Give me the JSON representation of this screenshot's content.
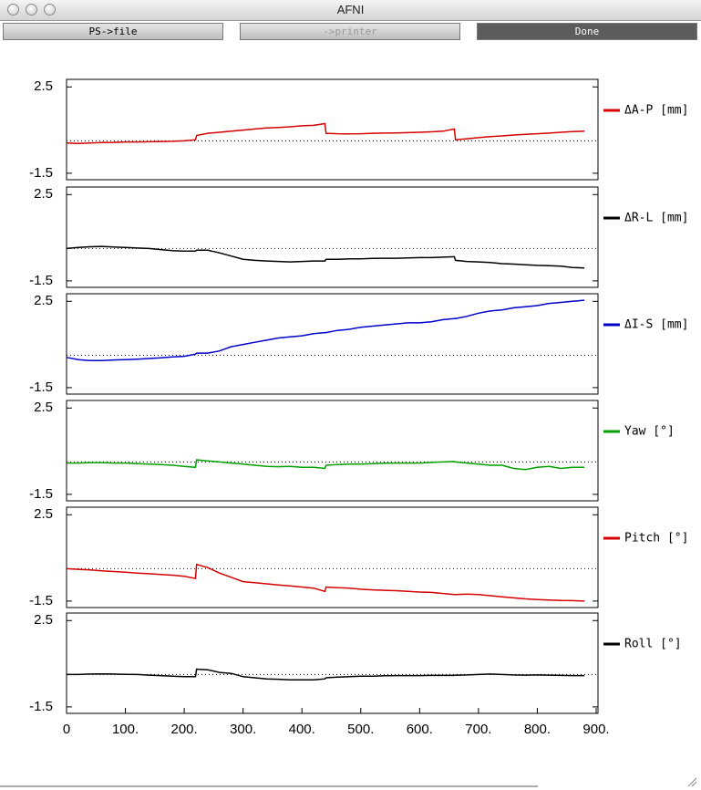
{
  "window": {
    "title": "AFNI",
    "buttons": [
      "PS->file",
      "->printer",
      "Done"
    ]
  },
  "chart_data": [
    {
      "type": "line",
      "xlim": [
        0,
        900
      ],
      "ylim": [
        -1.8,
        2.85
      ],
      "yticks": [
        2.5,
        -1.5
      ],
      "x": [
        0,
        20,
        40,
        60,
        80,
        100,
        120,
        140,
        160,
        180,
        200,
        219,
        221,
        240,
        260,
        280,
        300,
        320,
        340,
        360,
        380,
        400,
        420,
        439,
        441,
        460,
        480,
        500,
        520,
        540,
        560,
        580,
        600,
        620,
        640,
        659,
        661,
        680,
        700,
        720,
        740,
        760,
        780,
        800,
        820,
        840,
        860,
        880
      ],
      "series": [
        {
          "name": "ΔA-P [mm]",
          "color": "#d40000",
          "values": [
            -0.1,
            -0.12,
            -0.1,
            -0.08,
            -0.07,
            -0.05,
            -0.05,
            -0.04,
            -0.03,
            -0.02,
            0.0,
            0.05,
            0.25,
            0.35,
            0.4,
            0.45,
            0.5,
            0.55,
            0.6,
            0.62,
            0.65,
            0.7,
            0.72,
            0.8,
            0.35,
            0.33,
            0.32,
            0.33,
            0.35,
            0.36,
            0.37,
            0.38,
            0.4,
            0.42,
            0.45,
            0.55,
            0.05,
            0.1,
            0.15,
            0.2,
            0.23,
            0.27,
            0.3,
            0.33,
            0.36,
            0.4,
            0.43,
            0.45
          ]
        }
      ]
    },
    {
      "type": "line",
      "xlim": [
        0,
        900
      ],
      "ylim": [
        -1.8,
        2.85
      ],
      "yticks": [
        2.5,
        -1.5
      ],
      "x": [
        0,
        20,
        40,
        60,
        80,
        100,
        120,
        140,
        160,
        180,
        200,
        219,
        221,
        240,
        260,
        280,
        300,
        320,
        340,
        360,
        380,
        400,
        420,
        439,
        441,
        460,
        480,
        500,
        520,
        540,
        560,
        580,
        600,
        620,
        640,
        659,
        661,
        680,
        700,
        720,
        740,
        760,
        780,
        800,
        820,
        840,
        860,
        880
      ],
      "series": [
        {
          "name": "ΔR-L [mm]",
          "color": "#000000",
          "values": [
            0,
            0.05,
            0.08,
            0.1,
            0.07,
            0.05,
            0.02,
            0,
            -0.05,
            -0.1,
            -0.12,
            -0.12,
            -0.08,
            -0.08,
            -0.2,
            -0.35,
            -0.5,
            -0.55,
            -0.58,
            -0.6,
            -0.62,
            -0.6,
            -0.58,
            -0.58,
            -0.5,
            -0.5,
            -0.48,
            -0.48,
            -0.46,
            -0.45,
            -0.45,
            -0.44,
            -0.42,
            -0.42,
            -0.4,
            -0.38,
            -0.55,
            -0.6,
            -0.62,
            -0.65,
            -0.7,
            -0.72,
            -0.75,
            -0.78,
            -0.8,
            -0.82,
            -0.88,
            -0.9
          ]
        }
      ]
    },
    {
      "type": "line",
      "xlim": [
        0,
        900
      ],
      "ylim": [
        -1.8,
        2.85
      ],
      "yticks": [
        2.5,
        -1.5
      ],
      "x": [
        0,
        20,
        40,
        60,
        80,
        100,
        120,
        140,
        160,
        180,
        200,
        219,
        221,
        240,
        260,
        280,
        300,
        320,
        340,
        360,
        380,
        400,
        420,
        439,
        441,
        460,
        480,
        500,
        520,
        540,
        560,
        580,
        600,
        620,
        640,
        659,
        661,
        680,
        700,
        720,
        740,
        760,
        780,
        800,
        820,
        840,
        860,
        880
      ],
      "series": [
        {
          "name": "ΔI-S [mm]",
          "color": "#0000c8",
          "values": [
            -0.1,
            -0.2,
            -0.25,
            -0.25,
            -0.22,
            -0.2,
            -0.18,
            -0.15,
            -0.12,
            -0.08,
            -0.05,
            0.05,
            0.1,
            0.1,
            0.2,
            0.4,
            0.5,
            0.6,
            0.7,
            0.8,
            0.85,
            0.9,
            1.0,
            1.05,
            1.05,
            1.15,
            1.2,
            1.3,
            1.35,
            1.4,
            1.45,
            1.5,
            1.5,
            1.55,
            1.65,
            1.7,
            1.7,
            1.8,
            1.95,
            2.05,
            2.1,
            2.2,
            2.25,
            2.3,
            2.4,
            2.45,
            2.5,
            2.55
          ]
        }
      ]
    },
    {
      "type": "line",
      "xlim": [
        0,
        900
      ],
      "ylim": [
        -1.8,
        2.85
      ],
      "yticks": [
        2.5,
        -1.5
      ],
      "x": [
        0,
        20,
        40,
        60,
        80,
        100,
        120,
        140,
        160,
        180,
        200,
        219,
        221,
        240,
        260,
        280,
        300,
        320,
        340,
        360,
        380,
        400,
        420,
        439,
        441,
        460,
        480,
        500,
        520,
        540,
        560,
        580,
        600,
        620,
        640,
        659,
        661,
        680,
        700,
        720,
        740,
        760,
        780,
        800,
        820,
        840,
        860,
        880
      ],
      "series": [
        {
          "name": "Yaw [°]",
          "color": "#00a000",
          "values": [
            -0.05,
            -0.05,
            -0.03,
            -0.03,
            -0.05,
            -0.05,
            -0.08,
            -0.1,
            -0.12,
            -0.15,
            -0.2,
            -0.25,
            0.1,
            0.05,
            0,
            -0.05,
            -0.1,
            -0.15,
            -0.2,
            -0.22,
            -0.2,
            -0.25,
            -0.25,
            -0.3,
            -0.15,
            -0.12,
            -0.1,
            -0.1,
            -0.08,
            -0.06,
            -0.05,
            -0.05,
            -0.05,
            -0.02,
            0,
            0.02,
            0.0,
            -0.05,
            -0.1,
            -0.15,
            -0.15,
            -0.3,
            -0.35,
            -0.25,
            -0.2,
            -0.3,
            -0.25,
            -0.25
          ]
        }
      ]
    },
    {
      "type": "line",
      "xlim": [
        0,
        900
      ],
      "ylim": [
        -1.8,
        2.85
      ],
      "yticks": [
        2.5,
        -1.5
      ],
      "x": [
        0,
        20,
        40,
        60,
        80,
        100,
        120,
        140,
        160,
        180,
        200,
        219,
        221,
        240,
        260,
        280,
        300,
        320,
        340,
        360,
        380,
        400,
        420,
        439,
        441,
        460,
        480,
        500,
        520,
        540,
        560,
        580,
        600,
        620,
        640,
        659,
        661,
        680,
        700,
        720,
        740,
        760,
        780,
        800,
        820,
        840,
        860,
        880
      ],
      "series": [
        {
          "name": "Pitch [°]",
          "color": "#d40000",
          "values": [
            0,
            -0.03,
            -0.06,
            -0.1,
            -0.13,
            -0.16,
            -0.2,
            -0.23,
            -0.27,
            -0.3,
            -0.35,
            -0.45,
            0.2,
            0.05,
            -0.2,
            -0.4,
            -0.6,
            -0.65,
            -0.7,
            -0.75,
            -0.8,
            -0.85,
            -0.9,
            -1.05,
            -0.85,
            -0.88,
            -0.9,
            -0.95,
            -0.98,
            -1.0,
            -1.02,
            -1.05,
            -1.08,
            -1.1,
            -1.15,
            -1.2,
            -1.2,
            -1.18,
            -1.2,
            -1.25,
            -1.3,
            -1.35,
            -1.4,
            -1.43,
            -1.45,
            -1.47,
            -1.48,
            -1.5
          ]
        }
      ]
    },
    {
      "type": "line",
      "xlim": [
        0,
        900
      ],
      "ylim": [
        -1.8,
        2.85
      ],
      "yticks": [
        2.5,
        -1.5
      ],
      "xticks": [
        0,
        {
          "value": 100,
          "label": "100."
        },
        {
          "value": 200,
          "label": "200."
        },
        {
          "value": 300,
          "label": "300."
        },
        {
          "value": 400,
          "label": "400."
        },
        {
          "value": 500,
          "label": "500."
        },
        {
          "value": 600,
          "label": "600."
        },
        {
          "value": 700,
          "label": "700."
        },
        {
          "value": 800,
          "label": "800."
        },
        {
          "value": 900,
          "label": "900."
        }
      ],
      "x": [
        0,
        20,
        40,
        60,
        80,
        100,
        120,
        140,
        160,
        180,
        200,
        219,
        221,
        240,
        260,
        280,
        300,
        320,
        340,
        360,
        380,
        400,
        420,
        439,
        441,
        460,
        480,
        500,
        520,
        540,
        560,
        580,
        600,
        620,
        640,
        659,
        661,
        680,
        700,
        720,
        740,
        760,
        780,
        800,
        820,
        840,
        860,
        880
      ],
      "series": [
        {
          "name": "Roll [°]",
          "color": "#000000",
          "values": [
            0,
            0,
            0.02,
            0.03,
            0.02,
            0.01,
            0,
            -0.03,
            -0.05,
            -0.08,
            -0.1,
            -0.1,
            0.25,
            0.22,
            0.1,
            0.05,
            -0.1,
            -0.15,
            -0.2,
            -0.22,
            -0.25,
            -0.25,
            -0.25,
            -0.2,
            -0.15,
            -0.12,
            -0.1,
            -0.08,
            -0.08,
            -0.06,
            -0.05,
            -0.05,
            -0.05,
            -0.04,
            -0.04,
            -0.04,
            -0.03,
            -0.02,
            0.0,
            0.02,
            0,
            -0.02,
            -0.03,
            -0.02,
            -0.03,
            -0.04,
            -0.05,
            -0.05
          ]
        }
      ]
    }
  ]
}
